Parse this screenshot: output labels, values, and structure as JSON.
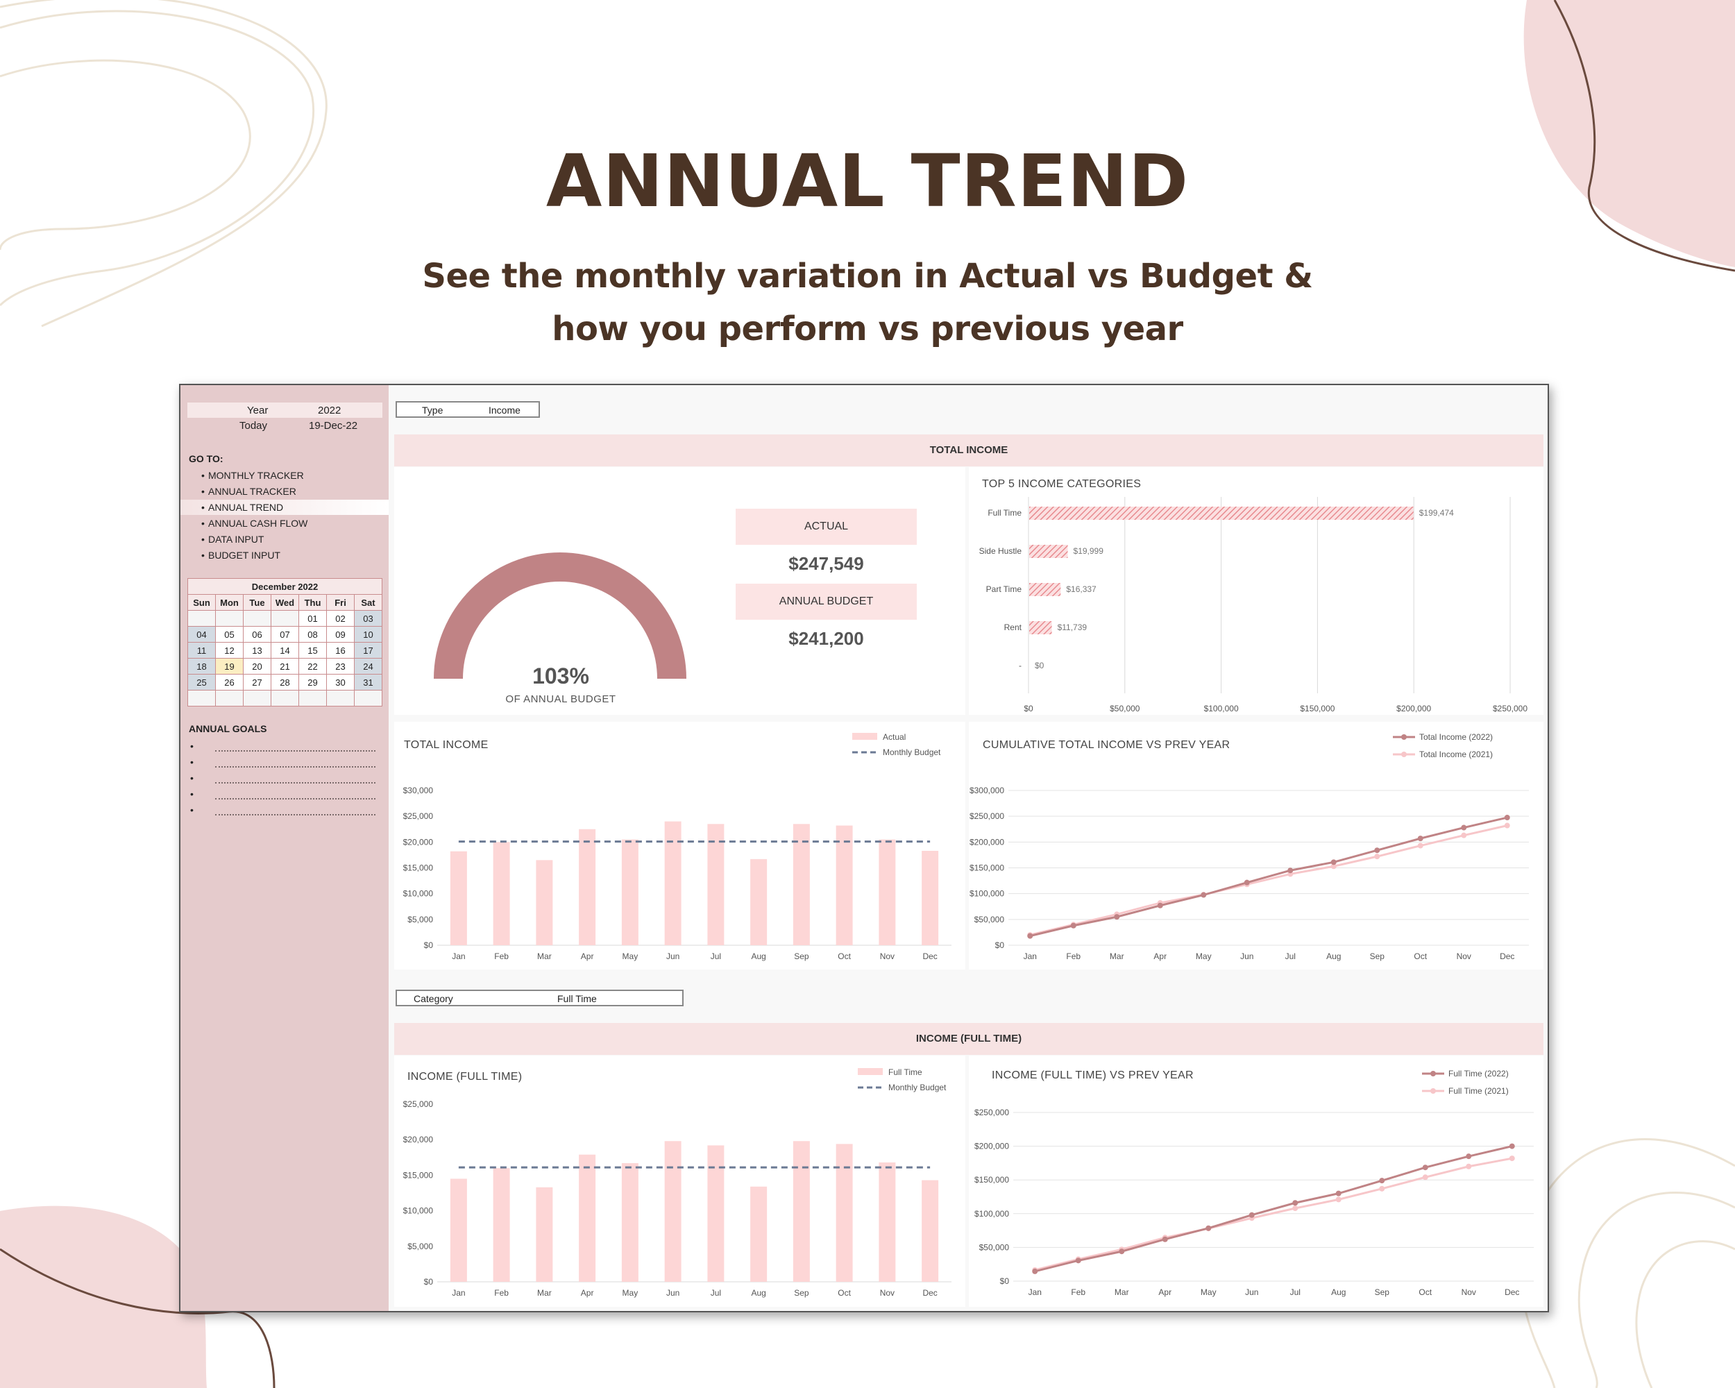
{
  "hero": {
    "title": "ANNUAL TREND",
    "subtitle_line1": "See the monthly variation in Actual vs Budget &",
    "subtitle_line2": "how you perform vs previous year"
  },
  "colors": {
    "bar": "#fdd6d6",
    "budget_line": "#6b7a94",
    "line_2022": "#c08385",
    "line_2021": "#f7c6c9",
    "gauge": "#c08385",
    "hbar": "#e88a8f"
  },
  "sidebar": {
    "year_label": "Year",
    "year_value": "2022",
    "today_label": "Today",
    "today_value": "19-Dec-22",
    "goto_title": "GO TO:",
    "nav": [
      "MONTHLY TRACKER",
      "ANNUAL TRACKER",
      "ANNUAL TREND",
      "ANNUAL CASH FLOW",
      "DATA INPUT",
      "BUDGET INPUT"
    ],
    "active_nav": 2,
    "calendar": {
      "title": "December 2022",
      "days": [
        "Sun",
        "Mon",
        "Tue",
        "Wed",
        "Thu",
        "Fri",
        "Sat"
      ],
      "weeks": [
        [
          "",
          "",
          "",
          "",
          "01",
          "02",
          "03"
        ],
        [
          "04",
          "05",
          "06",
          "07",
          "08",
          "09",
          "10"
        ],
        [
          "11",
          "12",
          "13",
          "14",
          "15",
          "16",
          "17"
        ],
        [
          "18",
          "19",
          "20",
          "21",
          "22",
          "23",
          "24"
        ],
        [
          "25",
          "26",
          "27",
          "28",
          "29",
          "30",
          "31"
        ],
        [
          "",
          "",
          "",
          "",
          "",
          "",
          ""
        ]
      ],
      "today": "19"
    },
    "goals_title": "ANNUAL GOALS",
    "goal_bullets": [
      "•",
      "•",
      "•",
      "•",
      "•"
    ]
  },
  "type_selector": {
    "label": "Type",
    "value": "Income"
  },
  "category_selector": {
    "label": "Category",
    "value": "Full Time"
  },
  "band1": "TOTAL INCOME",
  "band2": "INCOME (FULL TIME)",
  "gauge": {
    "percent_text": "103%",
    "caption": "OF ANNUAL BUDGET",
    "percent": 103
  },
  "kpi": {
    "actual_label": "ACTUAL",
    "actual_value": "$247,549",
    "budget_label": "ANNUAL BUDGET",
    "budget_value": "$241,200"
  },
  "chart_data": [
    {
      "id": "top5",
      "type": "bar",
      "orientation": "horizontal",
      "title": "TOP 5 INCOME CATEGORIES",
      "categories": [
        "Full Time",
        "Side Hustle",
        "Part Time",
        "Rent",
        "-"
      ],
      "values": [
        199474,
        19999,
        16337,
        11739,
        0
      ],
      "labels": [
        "$199,474",
        "$19,999",
        "$16,337",
        "$11,739",
        "$0"
      ],
      "xlim": [
        0,
        250000
      ],
      "ticks": [
        "$0",
        "$50,000",
        "$100,000",
        "$150,000",
        "$200,000",
        "$250,000"
      ]
    },
    {
      "id": "total_income",
      "type": "bar",
      "title": "TOTAL INCOME",
      "categories": [
        "Jan",
        "Feb",
        "Mar",
        "Apr",
        "May",
        "Jun",
        "Jul",
        "Aug",
        "Sep",
        "Oct",
        "Nov",
        "Dec"
      ],
      "series": [
        {
          "name": "Actual",
          "type": "bar",
          "values": [
            18200,
            20000,
            16500,
            22500,
            20500,
            24000,
            23500,
            16700,
            23500,
            23200,
            20500,
            18300
          ]
        },
        {
          "name": "Monthly Budget",
          "type": "line",
          "dashed": true,
          "values": [
            20100,
            20100,
            20100,
            20100,
            20100,
            20100,
            20100,
            20100,
            20100,
            20100,
            20100,
            20100
          ]
        }
      ],
      "ylim": [
        0,
        30000
      ],
      "yticks": [
        "$0",
        "$5,000",
        "$10,000",
        "$15,000",
        "$20,000",
        "$25,000",
        "$30,000"
      ]
    },
    {
      "id": "cumulative",
      "type": "line",
      "title": "CUMULATIVE TOTAL INCOME VS PREV YEAR",
      "categories": [
        "Jan",
        "Feb",
        "Mar",
        "Apr",
        "May",
        "Jun",
        "Jul",
        "Aug",
        "Sep",
        "Oct",
        "Nov",
        "Dec"
      ],
      "series": [
        {
          "name": "Total Income (2022)",
          "values": [
            18000,
            38000,
            55000,
            77000,
            97500,
            121500,
            145000,
            161000,
            184000,
            207000,
            228000,
            247500
          ]
        },
        {
          "name": "Total Income (2021)",
          "values": [
            20000,
            40000,
            60000,
            82000,
            98000,
            118000,
            138000,
            153000,
            172000,
            193000,
            213000,
            232000
          ]
        }
      ],
      "ylim": [
        0,
        300000
      ],
      "yticks": [
        "$0",
        "$50,000",
        "$100,000",
        "$150,000",
        "$200,000",
        "$250,000",
        "$300,000"
      ]
    },
    {
      "id": "full_time",
      "type": "bar",
      "title": "INCOME (FULL TIME)",
      "categories": [
        "Jan",
        "Feb",
        "Mar",
        "Apr",
        "May",
        "Jun",
        "Jul",
        "Aug",
        "Sep",
        "Oct",
        "Nov",
        "Dec"
      ],
      "series": [
        {
          "name": "Full Time",
          "type": "bar",
          "values": [
            14500,
            16000,
            13300,
            17900,
            16700,
            19800,
            19200,
            13400,
            19800,
            19400,
            16800,
            14300
          ]
        },
        {
          "name": "Monthly Budget",
          "type": "line",
          "dashed": true,
          "values": [
            16100,
            16100,
            16100,
            16100,
            16100,
            16100,
            16100,
            16100,
            16100,
            16100,
            16100,
            16100
          ]
        }
      ],
      "ylim": [
        0,
        25000
      ],
      "yticks": [
        "$0",
        "$5,000",
        "$10,000",
        "$15,000",
        "$20,000",
        "$25,000"
      ]
    },
    {
      "id": "full_time_prev",
      "type": "line",
      "title": "INCOME (FULL TIME) VS PREV YEAR",
      "categories": [
        "Jan",
        "Feb",
        "Mar",
        "Apr",
        "May",
        "Jun",
        "Jul",
        "Aug",
        "Sep",
        "Oct",
        "Nov",
        "Dec"
      ],
      "series": [
        {
          "name": "Full Time (2022)",
          "values": [
            14500,
            30500,
            44000,
            62000,
            78500,
            98000,
            116000,
            130000,
            149000,
            168500,
            185000,
            200000
          ]
        },
        {
          "name": "Full Time (2021)",
          "values": [
            16500,
            32500,
            47000,
            64500,
            78000,
            93500,
            108000,
            121000,
            137000,
            154000,
            170000,
            182000
          ]
        }
      ],
      "ylim": [
        0,
        250000
      ],
      "yticks": [
        "$0",
        "$50,000",
        "$100,000",
        "$150,000",
        "$200,000",
        "$250,000"
      ]
    }
  ]
}
